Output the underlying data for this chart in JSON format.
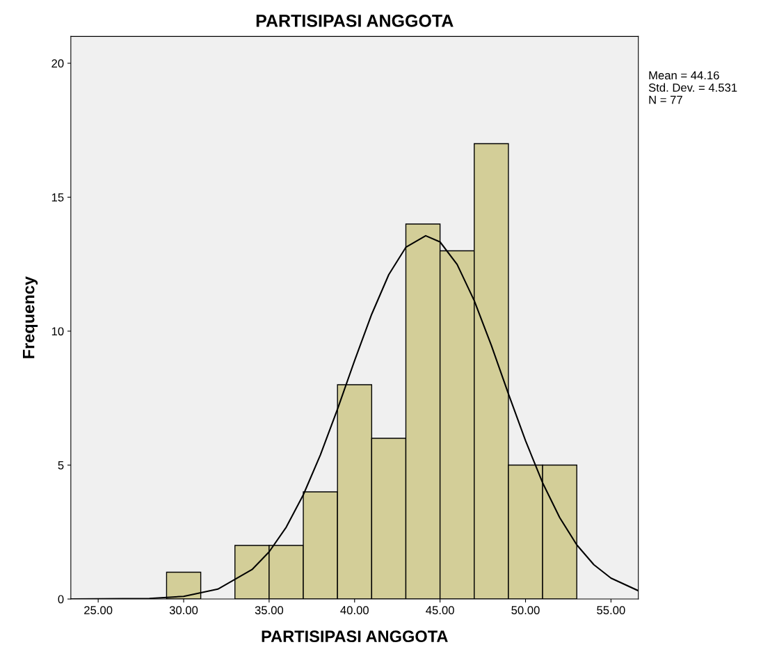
{
  "chart_data": {
    "type": "histogram",
    "title": "PARTISIPASI ANGGOTA",
    "xlabel": "PARTISIPASI ANGGOTA",
    "ylabel": "Frequency",
    "bins": [
      29,
      31,
      33,
      35,
      37,
      39,
      41,
      43,
      45,
      47,
      49,
      51,
      53
    ],
    "values": [
      1,
      0,
      2,
      2,
      4,
      8,
      6,
      14,
      13,
      17,
      5,
      5
    ],
    "color": "#d3ce98",
    "series": [
      {
        "type": "line",
        "color": "#000000",
        "x": [
          23.4,
          28,
          30,
          32,
          34,
          35,
          36,
          37,
          38,
          39,
          40,
          41,
          42,
          43,
          44.16,
          45,
          46,
          47,
          48,
          49,
          50,
          51,
          52,
          53,
          54,
          55,
          56.6
        ],
        "values": [
          0.0,
          0.02,
          0.1,
          0.37,
          1.1,
          1.76,
          2.68,
          3.89,
          5.38,
          7.09,
          8.9,
          10.63,
          12.11,
          13.13,
          13.56,
          13.33,
          12.49,
          11.14,
          9.47,
          7.66,
          5.91,
          4.34,
          3.04,
          2.02,
          1.28,
          0.78,
          0.31
        ]
      }
    ],
    "xlim": [
      23.4,
      56.6
    ],
    "ylim": [
      0,
      21
    ],
    "xticks": [
      {
        "value": 25,
        "label": "25.00"
      },
      {
        "value": 30,
        "label": "30.00"
      },
      {
        "value": 35,
        "label": "35.00"
      },
      {
        "value": 40,
        "label": "40.00"
      },
      {
        "value": 45,
        "label": "45.00"
      },
      {
        "value": 50,
        "label": "50.00"
      },
      {
        "value": 55,
        "label": "55.00"
      }
    ],
    "yticks": [
      0,
      5,
      10,
      15,
      20
    ],
    "annotations": [
      "Mean = 44.16",
      "Std. Dev. = 4.531",
      "N = 77"
    ],
    "grid": false,
    "legend": false,
    "line_style": "solid",
    "marker": "none"
  }
}
